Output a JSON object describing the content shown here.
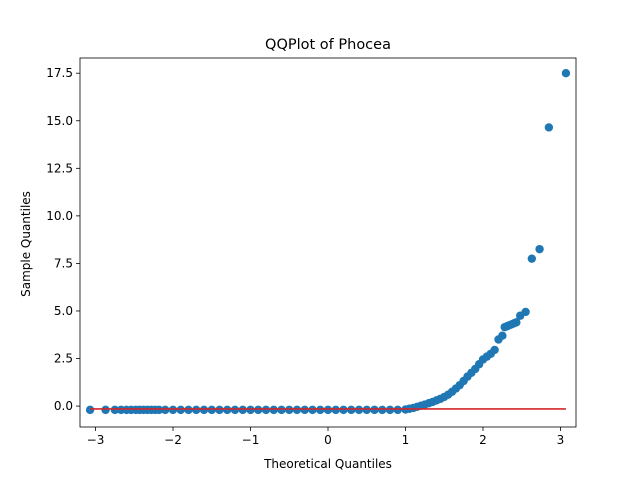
{
  "chart_data": {
    "type": "scatter",
    "title": "QQPlot of Phocea",
    "xlabel": "Theoretical Quantiles",
    "ylabel": "Sample Quantiles",
    "xlim": [
      -3.2,
      3.2
    ],
    "ylim": [
      -1.1,
      18.3
    ],
    "xticks": [
      -3,
      -2,
      -1,
      0,
      1,
      2,
      3
    ],
    "xtick_labels": [
      "−3",
      "−2",
      "−1",
      "0",
      "1",
      "2",
      "3"
    ],
    "yticks": [
      0.0,
      2.5,
      5.0,
      7.5,
      10.0,
      12.5,
      15.0,
      17.5
    ],
    "ytick_labels": [
      "0.0",
      "2.5",
      "5.0",
      "7.5",
      "10.0",
      "12.5",
      "15.0",
      "17.5"
    ],
    "grid": false,
    "legend": "none",
    "marker_color": "#1f77b4",
    "reference_line": {
      "x": [
        -3.07,
        3.07
      ],
      "y": [
        -0.15,
        -0.15
      ],
      "color": "#d62728"
    },
    "series": [
      {
        "x": [
          -3.07,
          -2.87,
          -2.75,
          -2.67,
          -2.6,
          -2.54,
          -2.48,
          -2.43,
          -2.38,
          -2.33,
          -2.28,
          -2.23,
          -2.18,
          -2.1,
          -2.0,
          -1.9,
          -1.8,
          -1.7,
          -1.6,
          -1.5,
          -1.4,
          -1.3,
          -1.2,
          -1.1,
          -1.0,
          -0.9,
          -0.8,
          -0.7,
          -0.6,
          -0.5,
          -0.4,
          -0.3,
          -0.2,
          -0.1,
          0.0,
          0.1,
          0.2,
          0.3,
          0.4,
          0.5,
          0.6,
          0.7,
          0.8,
          0.9,
          1.0,
          1.05,
          1.1,
          1.15,
          1.2,
          1.25,
          1.3,
          1.35,
          1.4,
          1.45,
          1.5,
          1.55,
          1.6,
          1.65,
          1.7,
          1.75,
          1.8,
          1.85,
          1.9,
          1.95,
          2.0,
          2.05,
          2.1,
          2.15,
          2.2,
          2.25,
          2.28,
          2.31,
          2.34,
          2.37,
          2.4,
          2.43,
          2.48,
          2.55,
          2.63,
          2.73,
          2.85,
          3.07
        ],
        "y": [
          -0.2,
          -0.2,
          -0.2,
          -0.2,
          -0.2,
          -0.2,
          -0.2,
          -0.2,
          -0.2,
          -0.2,
          -0.2,
          -0.2,
          -0.2,
          -0.2,
          -0.2,
          -0.2,
          -0.2,
          -0.2,
          -0.2,
          -0.2,
          -0.2,
          -0.2,
          -0.2,
          -0.2,
          -0.2,
          -0.2,
          -0.2,
          -0.2,
          -0.2,
          -0.2,
          -0.2,
          -0.2,
          -0.2,
          -0.2,
          -0.2,
          -0.2,
          -0.2,
          -0.2,
          -0.2,
          -0.2,
          -0.2,
          -0.2,
          -0.2,
          -0.2,
          -0.18,
          -0.14,
          -0.1,
          -0.04,
          0.02,
          0.08,
          0.15,
          0.22,
          0.3,
          0.38,
          0.48,
          0.6,
          0.75,
          0.92,
          1.1,
          1.32,
          1.55,
          1.75,
          1.95,
          2.2,
          2.45,
          2.6,
          2.75,
          2.95,
          3.5,
          3.7,
          4.15,
          4.2,
          4.25,
          4.3,
          4.35,
          4.4,
          4.75,
          4.95,
          7.75,
          8.25,
          14.65,
          17.5
        ]
      }
    ]
  }
}
